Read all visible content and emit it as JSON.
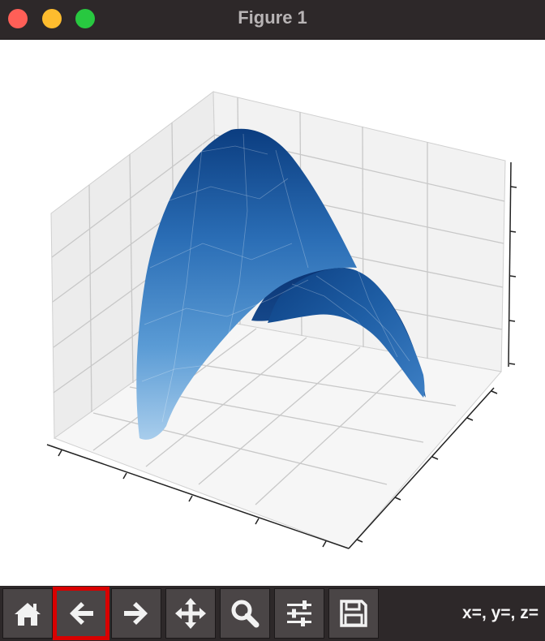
{
  "window": {
    "title": "Figure 1"
  },
  "toolbar": {
    "buttons": [
      {
        "name": "home-button",
        "icon": "home-icon"
      },
      {
        "name": "back-button",
        "icon": "arrow-left-icon",
        "highlighted": true
      },
      {
        "name": "forward-button",
        "icon": "arrow-right-icon"
      },
      {
        "name": "pan-button",
        "icon": "move-icon"
      },
      {
        "name": "zoom-button",
        "icon": "magnifier-icon"
      },
      {
        "name": "configure-subplots-button",
        "icon": "sliders-icon"
      },
      {
        "name": "save-button",
        "icon": "floppy-disk-icon"
      }
    ],
    "coordinates": "x=, y=, z="
  },
  "colors": {
    "highlight": "#d90000",
    "surface_dark": "#08306b",
    "surface_light": "#c6dbef"
  },
  "chart_data": {
    "type": "surface",
    "title": "",
    "xlabel": "",
    "ylabel": "",
    "zlabel": "",
    "colormap": "Blues",
    "grid": true,
    "tick_labels_visible": false,
    "description_shape": "downward-opening paraboloid arch surface (triangulated)"
  }
}
